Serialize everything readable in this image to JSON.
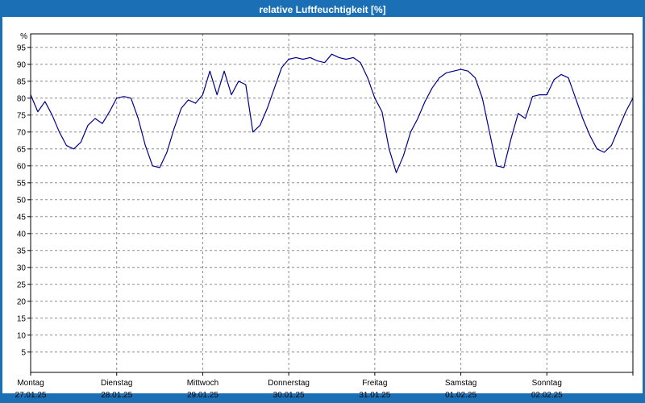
{
  "window": {
    "title": "relative Luftfeuchtigkeit [%]"
  },
  "colors": {
    "frame": "#1a6fb5",
    "line": "#00008b",
    "grid": "#8c8c8c",
    "plot_border": "#000000",
    "plot_bg": "#ffffff"
  },
  "chart_data": {
    "type": "line",
    "title": "relative Luftfeuchtigkeit [%]",
    "ylabel": "%",
    "ylim": [
      -1,
      99
    ],
    "yticks": [
      95,
      90,
      85,
      80,
      75,
      70,
      65,
      60,
      55,
      50,
      45,
      40,
      35,
      30,
      25,
      20,
      15,
      10,
      5
    ],
    "grid": "dashed",
    "legend": "none",
    "x_days": [
      {
        "label": "Montag",
        "date": "27.01.25"
      },
      {
        "label": "Dienstag",
        "date": "28.01.25"
      },
      {
        "label": "Mittwoch",
        "date": "29.01.25"
      },
      {
        "label": "Donnerstag",
        "date": "30.01.25"
      },
      {
        "label": "Freitag",
        "date": "31.01.25"
      },
      {
        "label": "Samstag",
        "date": "01.02.25"
      },
      {
        "label": "Sonntag",
        "date": "02.02.25"
      }
    ],
    "points_per_day": 12,
    "sampling": "approx. 2-hour intervals over 7 days",
    "values": [
      81,
      76,
      79,
      75,
      70,
      66,
      65,
      67,
      72,
      74,
      72.5,
      76,
      80,
      80.5,
      80,
      74,
      66,
      60,
      59.5,
      64,
      71,
      77,
      79.5,
      78.5,
      81,
      88,
      81,
      88,
      81,
      85,
      84,
      70,
      72,
      77,
      83,
      89,
      91.5,
      92,
      91.5,
      92,
      91,
      90.5,
      93,
      92,
      91.5,
      92,
      90.5,
      86,
      80,
      76,
      65,
      58,
      63,
      70,
      74,
      79,
      83,
      86,
      87.5,
      88,
      88.5,
      88,
      86,
      80,
      70,
      60,
      59.5,
      68,
      75.5,
      74,
      80.5,
      81,
      81,
      85.5,
      87,
      86,
      80,
      74,
      69,
      65,
      64,
      66,
      71,
      76,
      80
    ]
  }
}
